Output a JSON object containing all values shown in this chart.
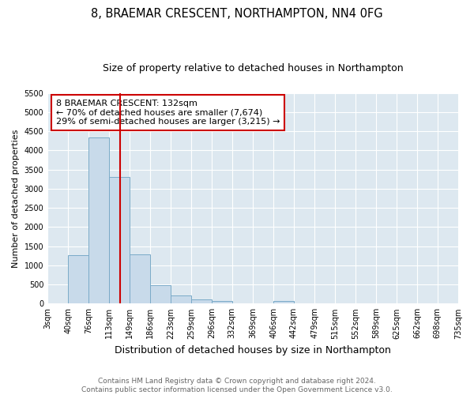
{
  "title": "8, BRAEMAR CRESCENT, NORTHAMPTON, NN4 0FG",
  "subtitle": "Size of property relative to detached houses in Northampton",
  "xlabel": "Distribution of detached houses by size in Northampton",
  "ylabel": "Number of detached properties",
  "footnote1": "Contains HM Land Registry data © Crown copyright and database right 2024.",
  "footnote2": "Contains public sector information licensed under the Open Government Licence v3.0.",
  "bin_edges": [
    3,
    40,
    76,
    113,
    149,
    186,
    223,
    259,
    296,
    332,
    369,
    406,
    442,
    479,
    515,
    552,
    589,
    625,
    662,
    698,
    735
  ],
  "bar_heights": [
    0,
    1270,
    4350,
    3300,
    1280,
    480,
    220,
    100,
    60,
    0,
    0,
    60,
    0,
    0,
    0,
    0,
    0,
    0,
    0,
    0
  ],
  "bar_color": "#c8daea",
  "bar_edge_color": "#7aaac8",
  "bar_edge_width": 0.7,
  "red_line_x": 132,
  "red_line_color": "#cc0000",
  "annotation_box_text": "8 BRAEMAR CRESCENT: 132sqm\n← 70% of detached houses are smaller (7,674)\n29% of semi-detached houses are larger (3,215) →",
  "ylim": [
    0,
    5500
  ],
  "yticks": [
    0,
    500,
    1000,
    1500,
    2000,
    2500,
    3000,
    3500,
    4000,
    4500,
    5000,
    5500
  ],
  "figure_bg_color": "#ffffff",
  "plot_bg_color": "#dde8f0",
  "grid_color": "#ffffff",
  "title_fontsize": 10.5,
  "subtitle_fontsize": 9,
  "xlabel_fontsize": 9,
  "ylabel_fontsize": 8,
  "tick_fontsize": 7,
  "annotation_fontsize": 8,
  "footnote_fontsize": 6.5
}
